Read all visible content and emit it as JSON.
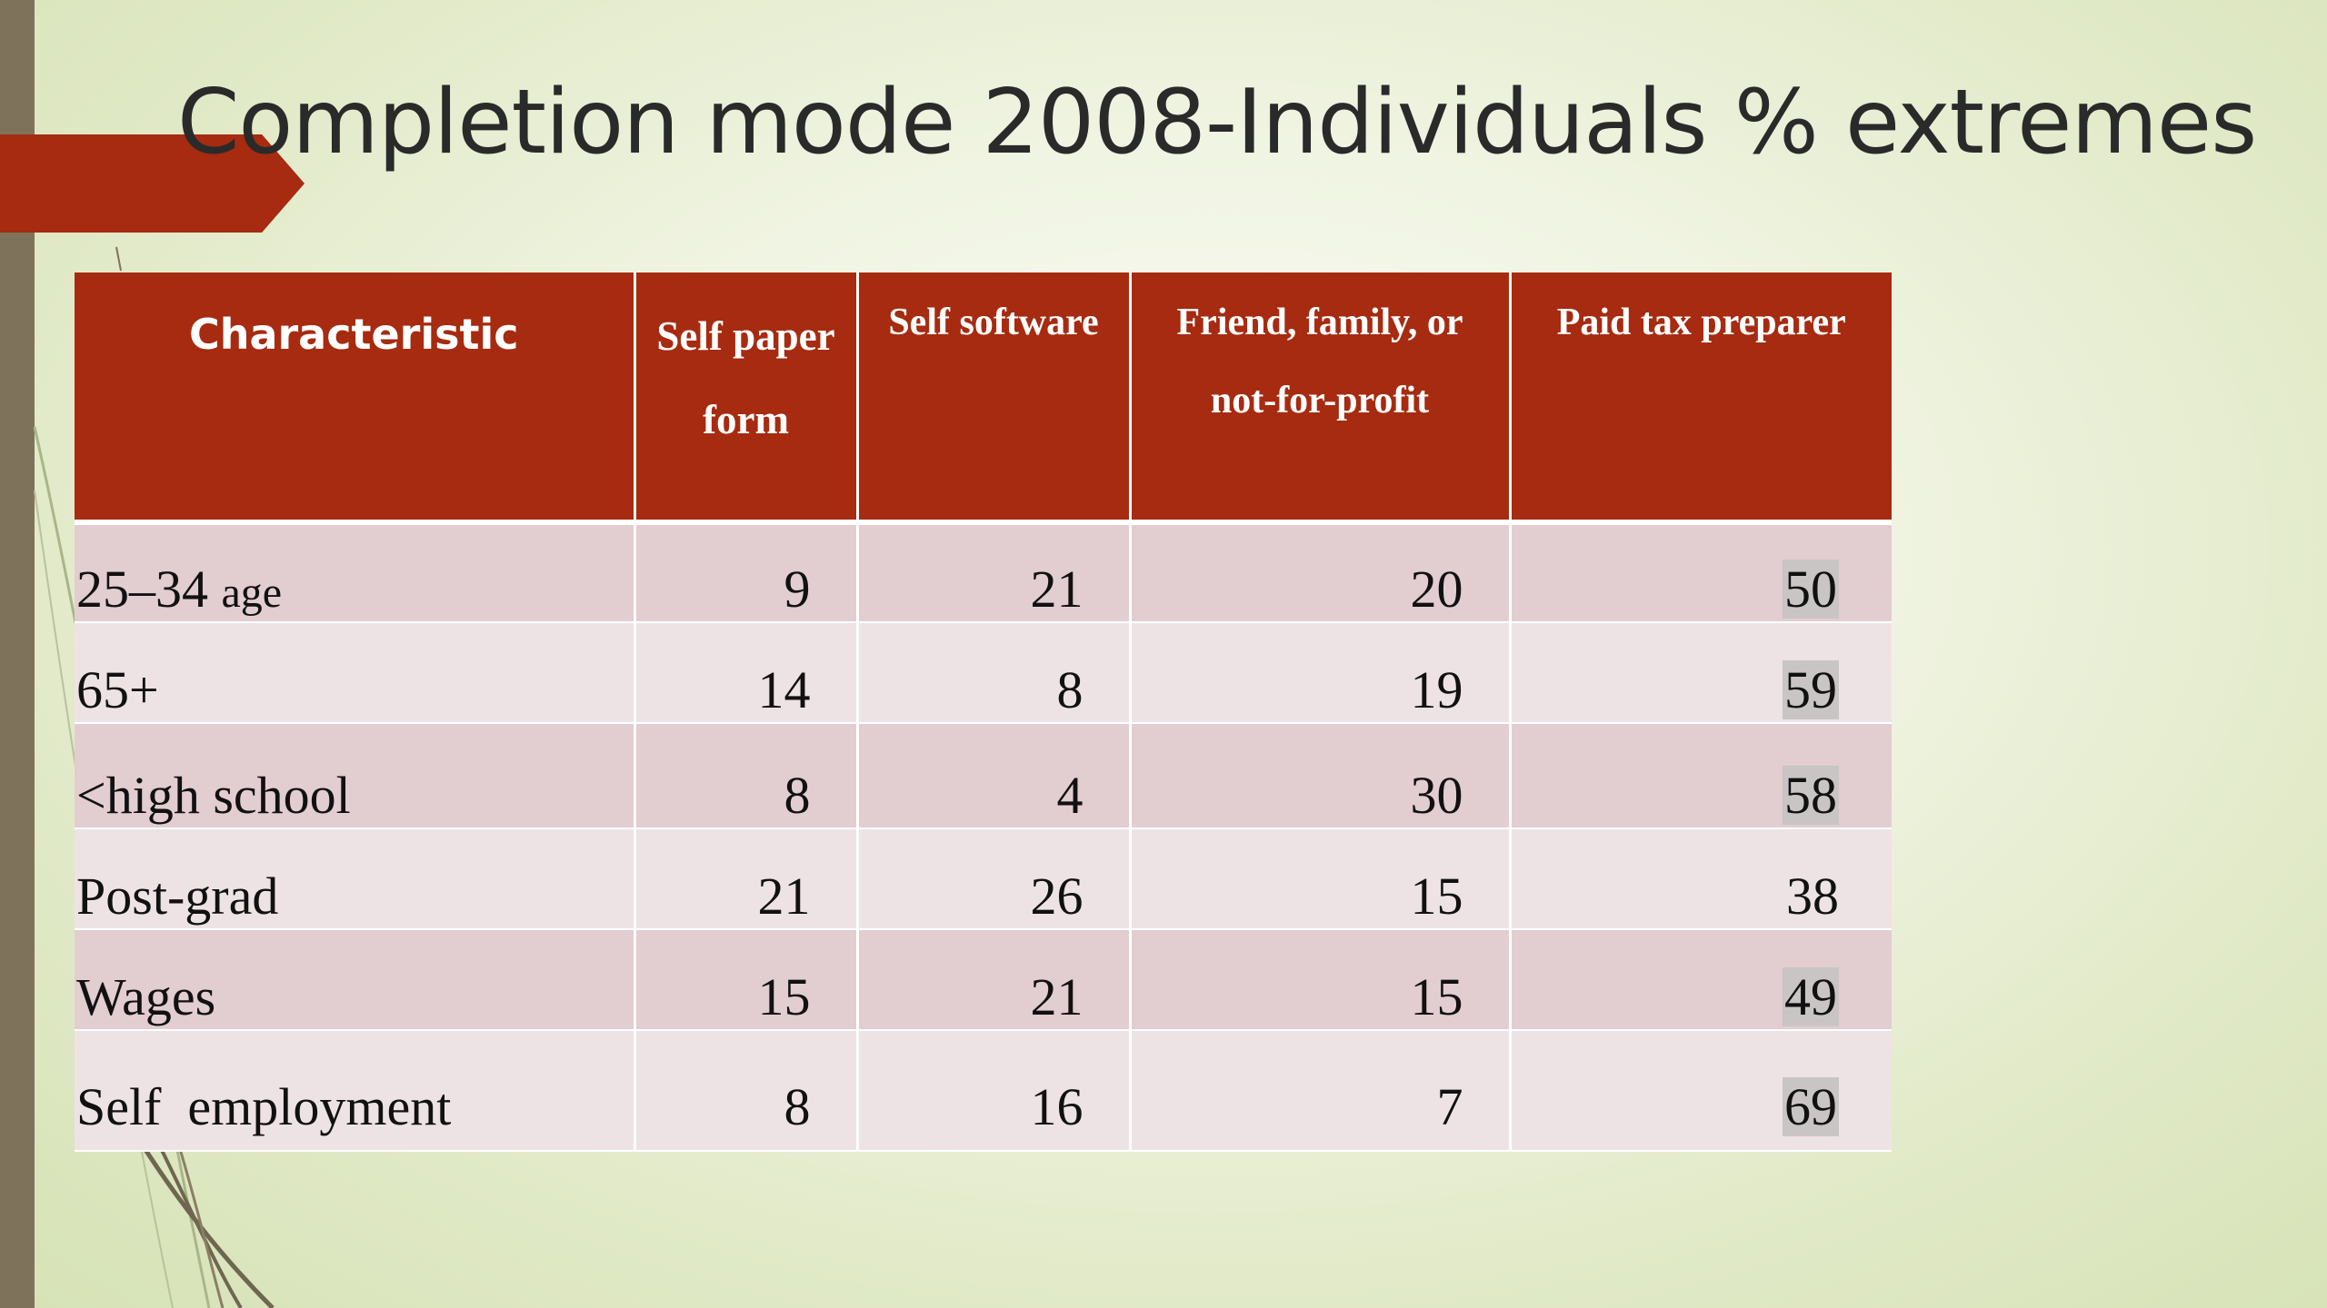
{
  "slide": {
    "title": "Completion mode 2008-Individuals % extremes",
    "colors": {
      "accent": "#a62b10",
      "left_bar": "#7e735a",
      "row_odd": "#e2cdd1",
      "row_even": "#ede3e5",
      "highlight": "#c9c5c5"
    }
  },
  "table": {
    "headers": [
      {
        "text": "Characteristic"
      },
      {
        "line1": "Self paper",
        "line2": "form"
      },
      {
        "text": "Self software"
      },
      {
        "line1": "Friend, family, or",
        "line2": "not-for-profit"
      },
      {
        "text": "Paid tax preparer"
      }
    ],
    "rows": [
      {
        "label_main": "25–34",
        "label_small": "age",
        "paper": "9",
        "software": "21",
        "friend": "20",
        "paid": "50",
        "paid_highlighted": true
      },
      {
        "label": "65+",
        "paper": "14",
        "software": "8",
        "friend": "19",
        "paid": "59",
        "paid_highlighted": true
      },
      {
        "label": "<high school",
        "paper": "8",
        "software": "4",
        "friend": "30",
        "paid": "58",
        "paid_highlighted": true
      },
      {
        "label": "Post-grad",
        "paper": "21",
        "software": "26",
        "friend": "15",
        "paid": "38",
        "paid_highlighted": false
      },
      {
        "label": "Wages",
        "paper": "15",
        "software": "21",
        "friend": "15",
        "paid": "49",
        "paid_highlighted": true
      },
      {
        "label": "Self  employment",
        "paper": "8",
        "software": "16",
        "friend": "7",
        "paid": "69",
        "paid_highlighted": true
      }
    ]
  }
}
